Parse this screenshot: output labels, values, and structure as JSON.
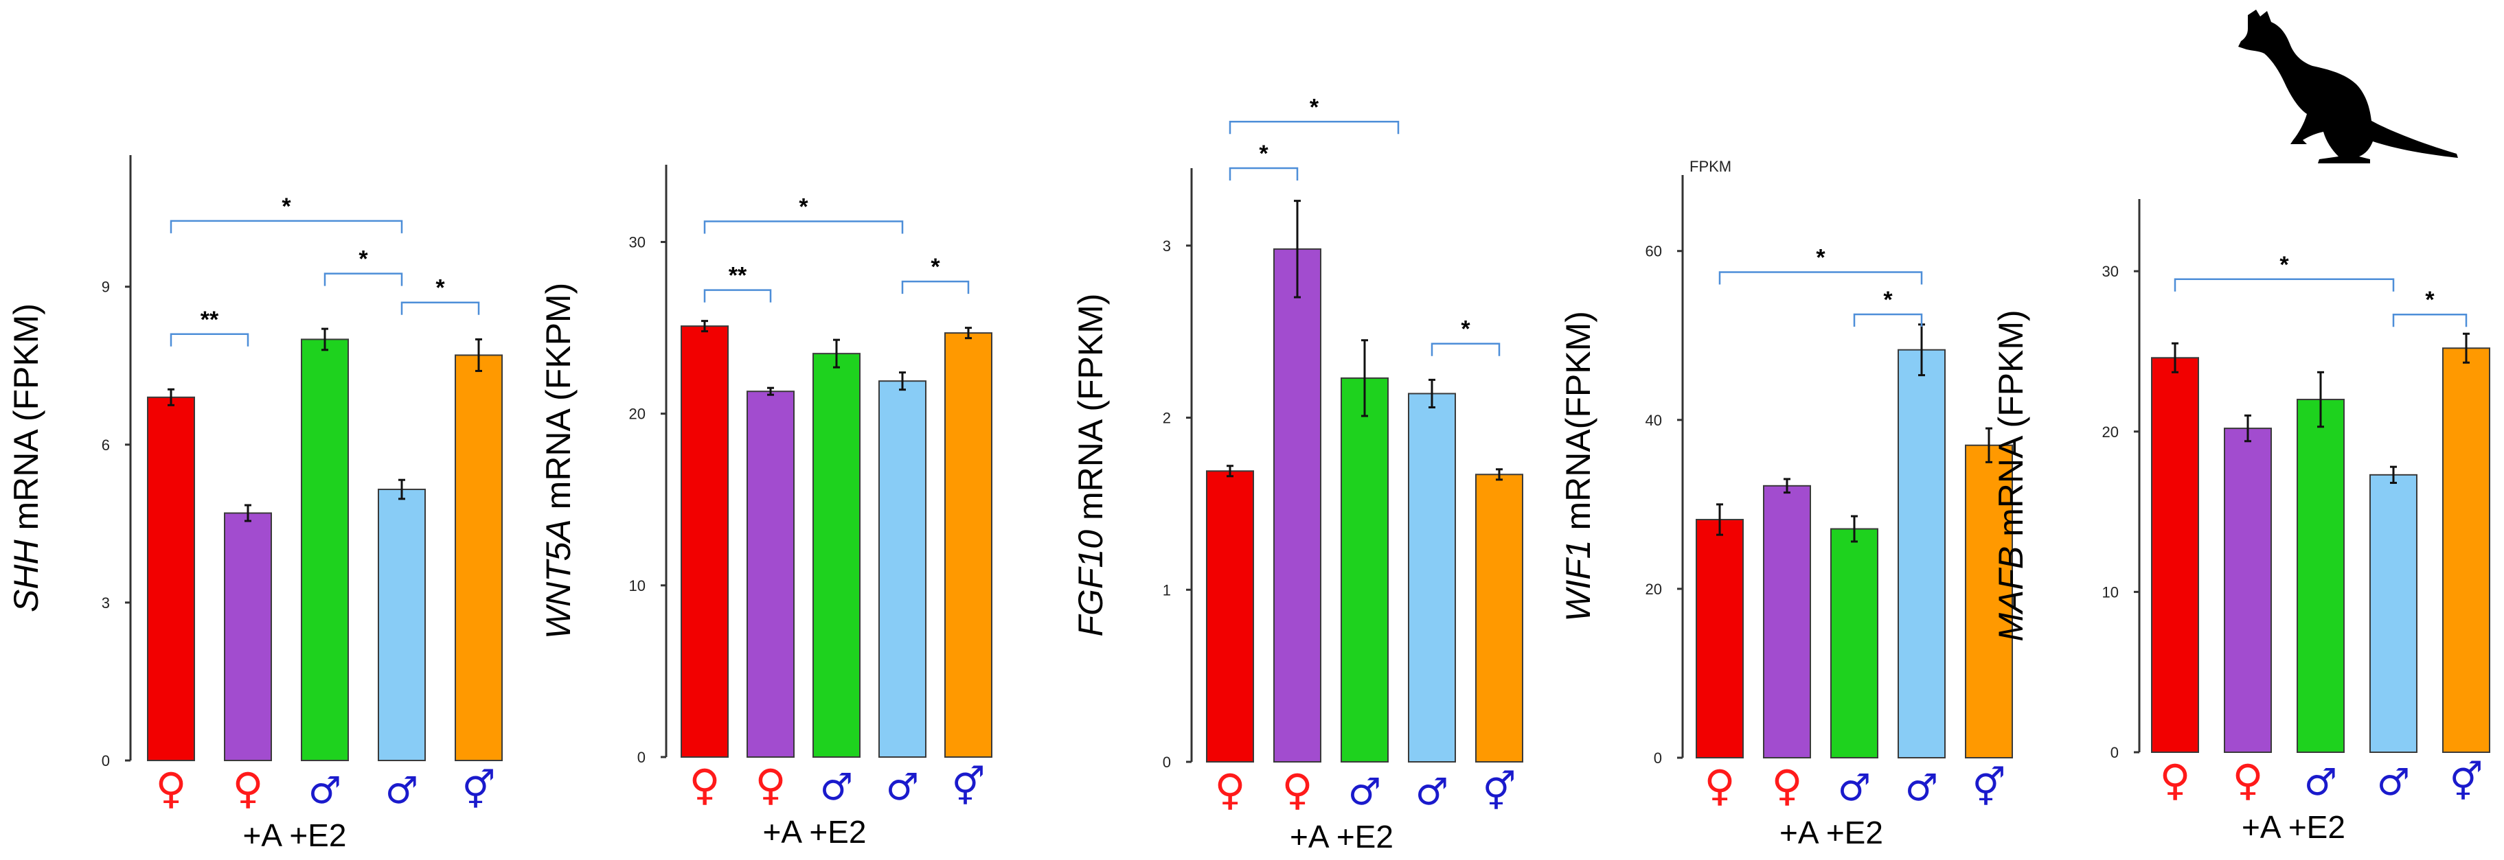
{
  "conditions_label": "+A +E2",
  "symbols": {
    "female": "♀",
    "male": "♂",
    "other": "⚥"
  },
  "colors": {
    "red": "#f20000",
    "purple": "#a24ccf",
    "green": "#1ed21e",
    "lightblue": "#88ccf6",
    "orange": "#ff9900",
    "bracket": "#4d8ed8",
    "axis": "#333333",
    "female_symbol": "#ff1a1a",
    "male_symbol": "#1a1acc"
  },
  "chart_data": [
    {
      "type": "bar",
      "gene": "SHH",
      "ylabel_rest": " mRNA (FPKM)",
      "ylim": [
        0,
        11.5
      ],
      "ticks": [
        0,
        3,
        6,
        9
      ],
      "categories": [
        "female",
        "female",
        "male",
        "male",
        "other"
      ],
      "values": [
        6.9,
        4.7,
        8.0,
        5.15,
        7.7
      ],
      "errors": [
        0.15,
        0.15,
        0.2,
        0.18,
        0.3
      ],
      "significance": [
        {
          "from": 0,
          "to": 3,
          "label": "*",
          "y": 10.25
        },
        {
          "from": 0,
          "to": 1,
          "label": "**",
          "y": 8.1
        },
        {
          "from": 2,
          "to": 3,
          "label": "*",
          "y": 9.25
        },
        {
          "from": 3,
          "to": 4,
          "label": "*",
          "y": 8.7
        }
      ]
    },
    {
      "type": "bar",
      "gene": "WNT5A",
      "ylabel_rest": " mRNA (FKPM)",
      "ylim": [
        0,
        34.5
      ],
      "ticks": [
        0,
        10,
        20,
        30
      ],
      "categories": [
        "female",
        "female",
        "male",
        "male",
        "other"
      ],
      "values": [
        25.1,
        21.3,
        23.5,
        21.9,
        24.7
      ],
      "errors": [
        0.3,
        0.2,
        0.8,
        0.5,
        0.3
      ],
      "significance": [
        {
          "from": 0,
          "to": 3,
          "label": "*",
          "y": 31.2
        },
        {
          "from": 0,
          "to": 1,
          "label": "**",
          "y": 27.2
        },
        {
          "from": 3,
          "to": 4,
          "label": "*",
          "y": 27.7
        }
      ]
    },
    {
      "type": "bar",
      "gene": "FGF10",
      "ylabel_rest": " mRNA (FPKM)",
      "ylim": [
        0,
        3.45
      ],
      "ticks": [
        0,
        1,
        2,
        3
      ],
      "categories": [
        "female",
        "female",
        "male",
        "male",
        "other"
      ],
      "values": [
        1.69,
        2.98,
        2.23,
        2.14,
        1.67
      ],
      "errors": [
        0.03,
        0.28,
        0.22,
        0.08,
        0.03
      ],
      "significance": [
        {
          "from": 0,
          "to": 2.5,
          "label": "*",
          "y": 3.72
        },
        {
          "from": 0,
          "to": 1,
          "label": "*",
          "y": 3.45
        },
        {
          "from": 3,
          "to": 4,
          "label": "*",
          "y": 2.43
        }
      ]
    },
    {
      "type": "bar",
      "gene": "WIF1",
      "ylabel_rest": " mRNA(FPKM)",
      "ylim": [
        0,
        69
      ],
      "ticks": [
        0,
        20,
        40,
        60
      ],
      "categories": [
        "female",
        "female",
        "male",
        "male",
        "other"
      ],
      "values": [
        28.2,
        32.2,
        27.1,
        48.3,
        37.0
      ],
      "errors": [
        1.8,
        0.8,
        1.5,
        3.0,
        2.0
      ],
      "note": "FPKM",
      "significance": [
        {
          "from": 0,
          "to": 3,
          "label": "*",
          "y": 57.5
        },
        {
          "from": 2,
          "to": 3,
          "label": "*",
          "y": 52.5
        }
      ]
    },
    {
      "type": "bar",
      "gene": "MAFB",
      "ylabel_rest": " mRNA (FPKM)",
      "ylim": [
        0,
        34.5
      ],
      "ticks": [
        0,
        10,
        20,
        30
      ],
      "categories": [
        "female",
        "female",
        "male",
        "male",
        "other"
      ],
      "values": [
        24.6,
        20.2,
        22.0,
        17.3,
        25.2
      ],
      "errors": [
        0.9,
        0.8,
        1.7,
        0.5,
        0.9
      ],
      "significance": [
        {
          "from": 0,
          "to": 3,
          "label": "*",
          "y": 29.5
        },
        {
          "from": 3,
          "to": 4,
          "label": "*",
          "y": 27.3
        }
      ]
    }
  ]
}
